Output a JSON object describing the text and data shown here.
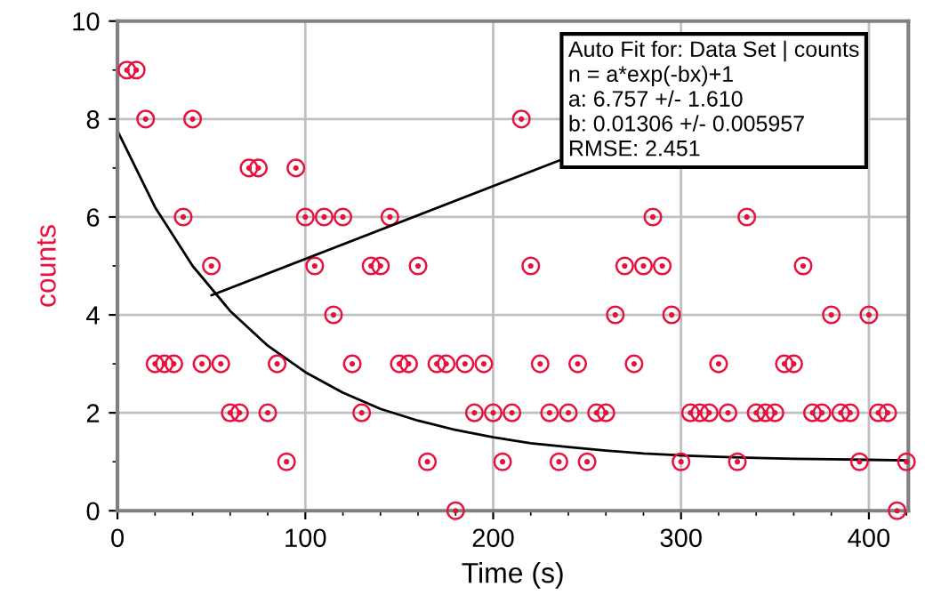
{
  "chart_data": {
    "type": "scatter",
    "xlabel": "Time (s)",
    "ylabel": "counts",
    "xlim": [
      0,
      421
    ],
    "ylim": [
      0,
      10
    ],
    "xticks": [
      0,
      100,
      200,
      300,
      400
    ],
    "yticks": [
      0,
      2,
      4,
      6,
      8,
      10
    ],
    "grid": true,
    "marker": "circle",
    "series": [
      {
        "color": "#e8103c",
        "x": [
          5,
          10,
          15,
          20,
          25,
          30,
          35,
          40,
          45,
          50,
          55,
          60,
          65,
          70,
          75,
          80,
          85,
          90,
          95,
          100,
          105,
          110,
          115,
          120,
          125,
          130,
          135,
          140,
          145,
          150,
          155,
          160,
          165,
          170,
          175,
          180,
          185,
          190,
          195,
          200,
          205,
          210,
          215,
          220,
          225,
          230,
          235,
          240,
          245,
          250,
          255,
          260,
          265,
          270,
          275,
          280,
          285,
          290,
          295,
          300,
          305,
          310,
          315,
          320,
          325,
          330,
          335,
          340,
          345,
          350,
          355,
          360,
          365,
          370,
          375,
          380,
          385,
          390,
          395,
          400,
          405,
          410,
          415,
          420
        ],
        "values": [
          9,
          9,
          8,
          3,
          3,
          3,
          6,
          8,
          3,
          5,
          3,
          2,
          2,
          7,
          7,
          2,
          3,
          1,
          7,
          6,
          5,
          6,
          4,
          6,
          3,
          2,
          5,
          5,
          6,
          3,
          3,
          5,
          1,
          3,
          3,
          0,
          3,
          2,
          3,
          2,
          1,
          2,
          8,
          5,
          3,
          2,
          1,
          2,
          3,
          1,
          2,
          2,
          4,
          5,
          3,
          5,
          6,
          5,
          4,
          1,
          2,
          2,
          2,
          3,
          2,
          1,
          6,
          2,
          2,
          2,
          3,
          3,
          5,
          2,
          2,
          4,
          2,
          2,
          1,
          4,
          2,
          2,
          0,
          1
        ]
      },
      {
        "type": "line",
        "color": "#000000",
        "marker": "none",
        "x": [
          0,
          20,
          40,
          60,
          80,
          100,
          120,
          140,
          160,
          180,
          200,
          220,
          240,
          260,
          280,
          300,
          320,
          340,
          360,
          380,
          400,
          420
        ],
        "values": [
          7.76,
          6.2,
          5.0,
          4.08,
          3.37,
          2.83,
          2.41,
          2.08,
          1.84,
          1.65,
          1.5,
          1.38,
          1.3,
          1.23,
          1.17,
          1.13,
          1.1,
          1.08,
          1.06,
          1.05,
          1.04,
          1.03
        ]
      }
    ],
    "annotations": [
      {
        "text": "Auto Fit for: Data Set | counts\nn = a*exp(-bx)+1\na: 6.757 +/- 1.610\nb: 0.01306 +/- 0.005957\nRMSE: 2.451",
        "x": 50,
        "y": 4.4
      }
    ]
  }
}
